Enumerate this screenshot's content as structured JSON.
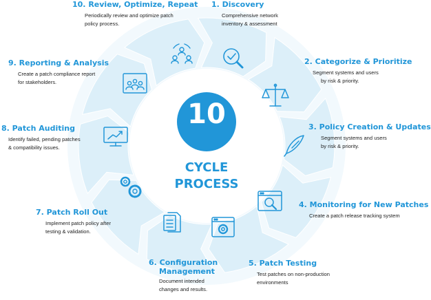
{
  "center": {
    "number": "10",
    "label_line1": "CYCLE",
    "label_line2": "PROCESS"
  },
  "steps": [
    {
      "title": "1. Discovery",
      "desc_line1": "Comprehensive network",
      "desc_line2": "inventory & assessment",
      "icon": "magnifier-check-icon"
    },
    {
      "title": "2. Categorize & Prioritize",
      "desc_line1": "Segment systems and users",
      "desc_line2": "by risk & priority.",
      "icon": "balance-scale-icon"
    },
    {
      "title": "3. Policy Creation & Updates",
      "desc_line1": "Segment systems and users",
      "desc_line2": "by risk & priority.",
      "icon": "quill-feather-icon"
    },
    {
      "title": "4. Monitoring for New Patches",
      "desc_line1": "Create a patch release tracking system",
      "desc_line2": "",
      "icon": "browser-search-icon"
    },
    {
      "title": "5. Patch Testing",
      "desc_line1": "Test patches on non-production",
      "desc_line2": "environments",
      "icon": "browser-gear-icon"
    },
    {
      "title_line1": "6. Configuration",
      "title_line2": "Management",
      "desc_line1": "Document intended",
      "desc_line2": "changes and results.",
      "icon": "documents-icon"
    },
    {
      "title": "7. Patch Roll Out",
      "desc_line1": "Implement patch policy after",
      "desc_line2": "testing & validation.",
      "icon": "gears-icon"
    },
    {
      "title": "8. Patch Auditing",
      "desc_line1": "Identify failed, pending patches",
      "desc_line2": "& compatibility issues.",
      "icon": "monitor-chart-icon"
    },
    {
      "title": "9. Reporting & Analysis",
      "desc_line1": "Create a patch compliance report",
      "desc_line2": "for stakeholders.",
      "icon": "presentation-audience-icon"
    },
    {
      "title": "10. Review, Optimize, Repeat",
      "desc_line1": "Periodically review and optimize patch",
      "desc_line2": "policy process.",
      "icon": "team-cycle-icon"
    }
  ],
  "colors": {
    "accent": "#2196d8",
    "segment": "#dceff9",
    "segment_edge": "#ffffff",
    "icon": "#2196d8"
  }
}
